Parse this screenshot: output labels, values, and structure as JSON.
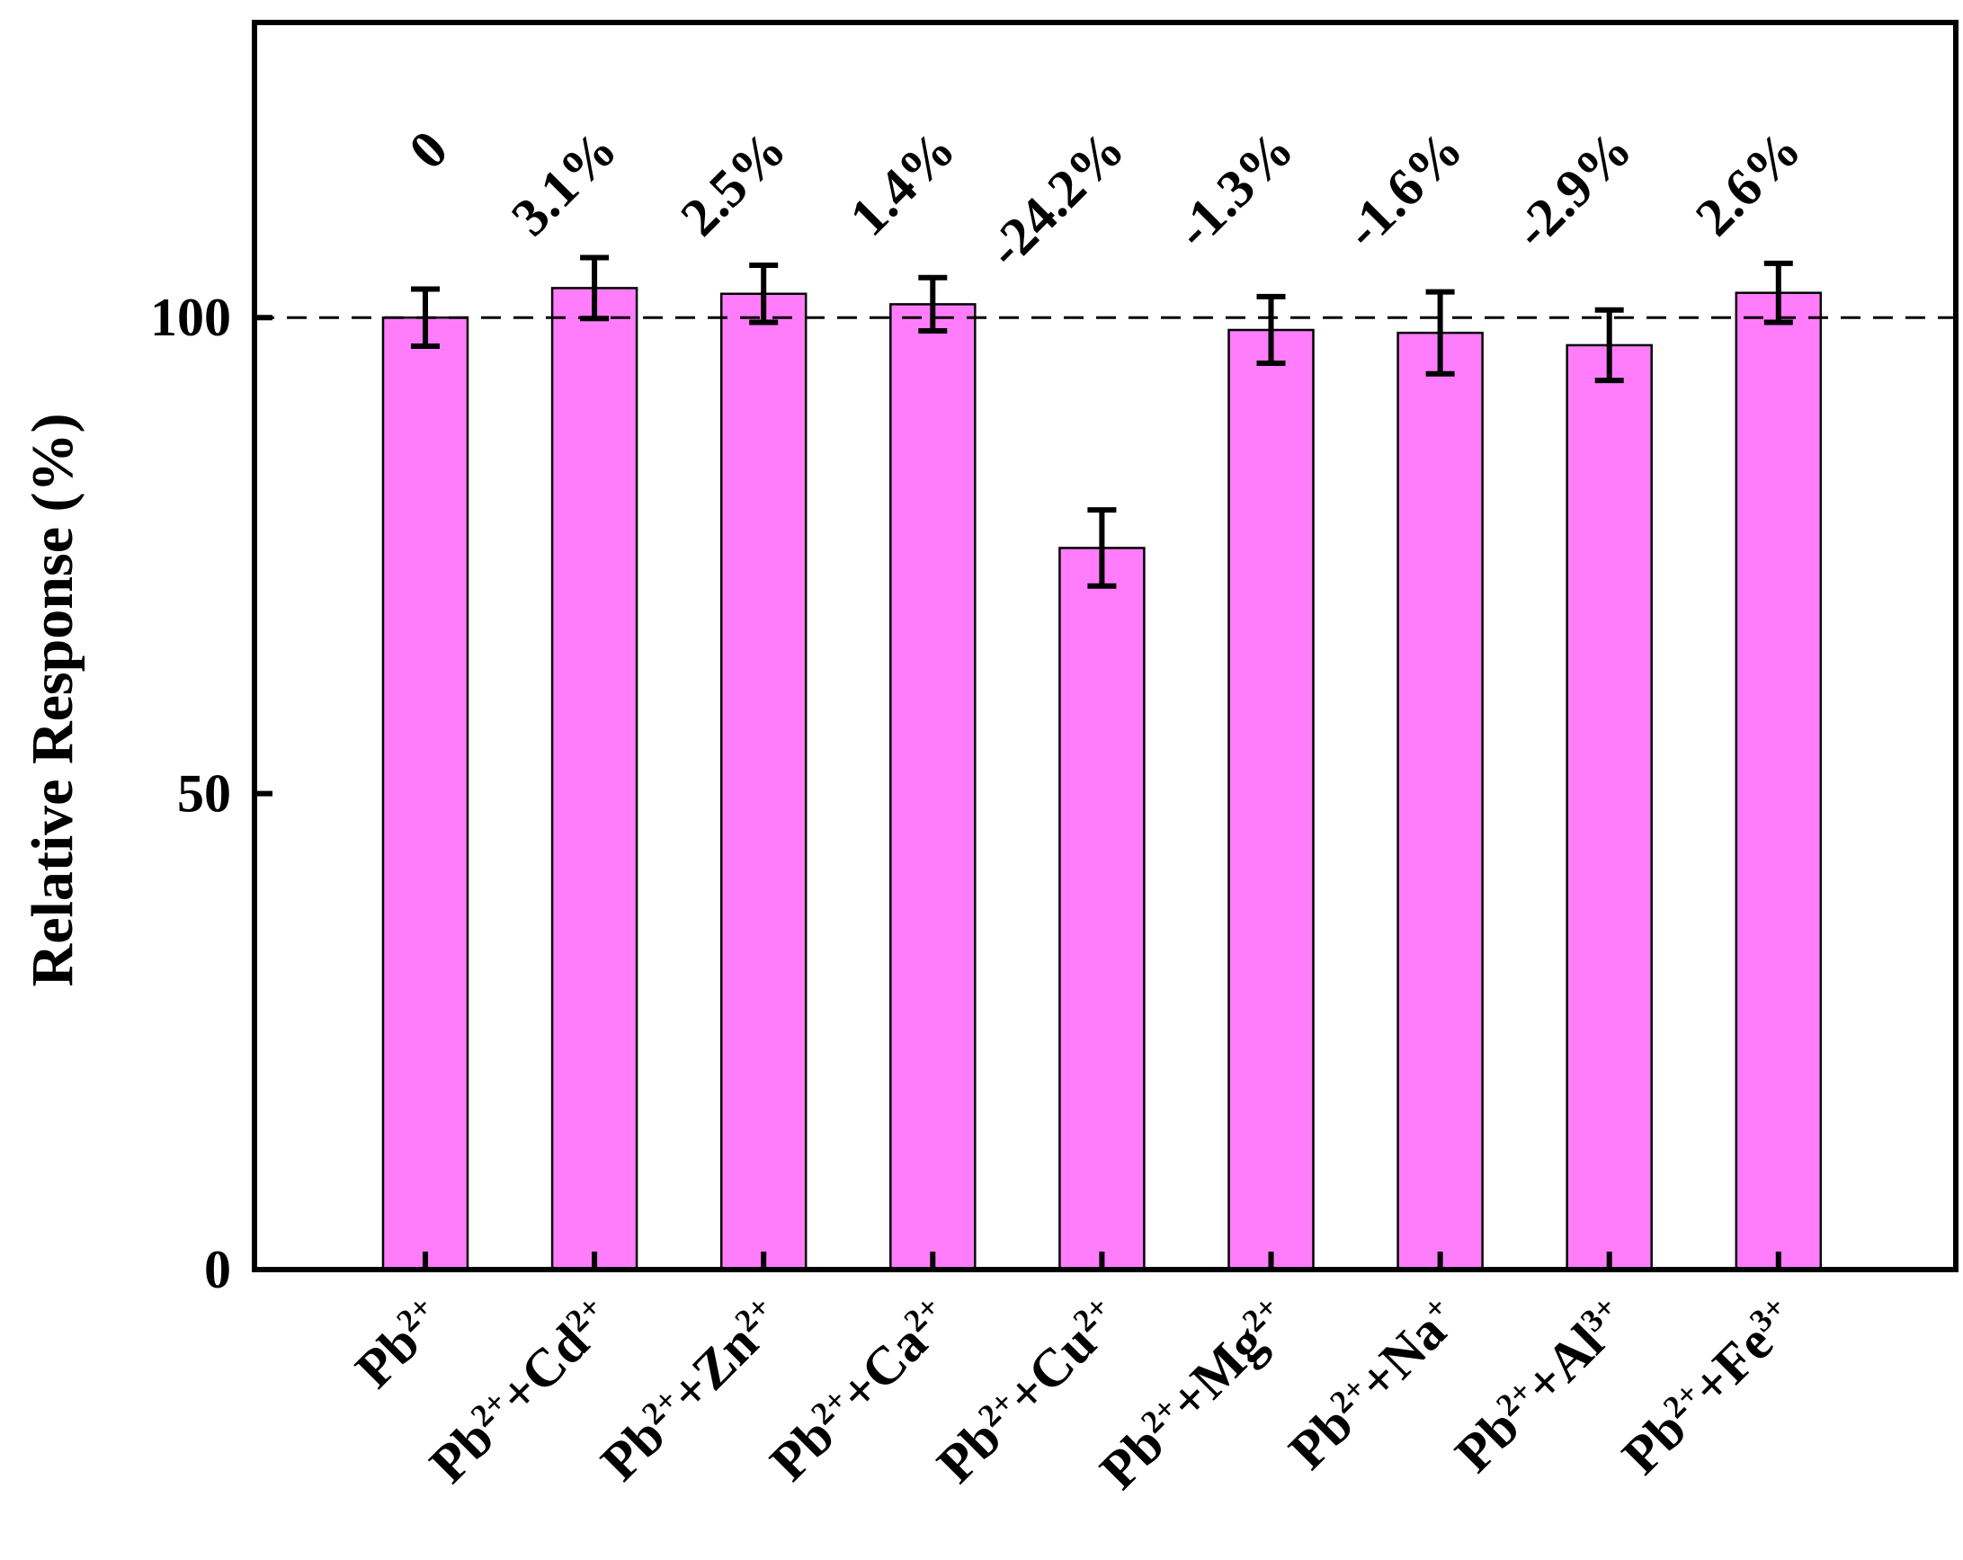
{
  "chart_data": {
    "type": "bar",
    "title": "",
    "xlabel": "",
    "ylabel": "Relative Response (%)",
    "ylim": [
      0,
      131
    ],
    "yticks": [
      0,
      50,
      100
    ],
    "reference_line": {
      "y": 100,
      "style": "dashed"
    },
    "grid": false,
    "legend": "none",
    "colors": {
      "bar": "#FF7DFB",
      "edge": "#000000",
      "axis": "#000000"
    },
    "categories": [
      {
        "base": "Pb",
        "base_sup": "2+",
        "ion": "",
        "ion_sup": ""
      },
      {
        "base": "Pb",
        "base_sup": "2+",
        "ion": "Cd",
        "ion_sup": "2+"
      },
      {
        "base": "Pb",
        "base_sup": "2+",
        "ion": "Zn",
        "ion_sup": "2+"
      },
      {
        "base": "Pb",
        "base_sup": "2+",
        "ion": "Ca",
        "ion_sup": "2+"
      },
      {
        "base": "Pb",
        "base_sup": "2+",
        "ion": "Cu",
        "ion_sup": "2+"
      },
      {
        "base": "Pb",
        "base_sup": "2+",
        "ion": "Mg",
        "ion_sup": "2+"
      },
      {
        "base": "Pb",
        "base_sup": "2+",
        "ion": "Na",
        "ion_sup": "+"
      },
      {
        "base": "Pb",
        "base_sup": "2+",
        "ion": "Al",
        "ion_sup": "3+"
      },
      {
        "base": "Pb",
        "base_sup": "2+",
        "ion": "Fe",
        "ion_sup": "3+"
      }
    ],
    "values": [
      100,
      103.1,
      102.5,
      101.4,
      75.8,
      98.7,
      98.4,
      97.1,
      102.6
    ],
    "errors": [
      3.0,
      3.2,
      3.0,
      2.8,
      4.0,
      3.5,
      4.3,
      3.7,
      3.1
    ],
    "data_labels": [
      "0",
      "3.1%",
      "2.5%",
      "1.4%",
      "-24.2%",
      "-1.3%",
      "-1.6%",
      "-2.9%",
      "2.6%"
    ]
  }
}
